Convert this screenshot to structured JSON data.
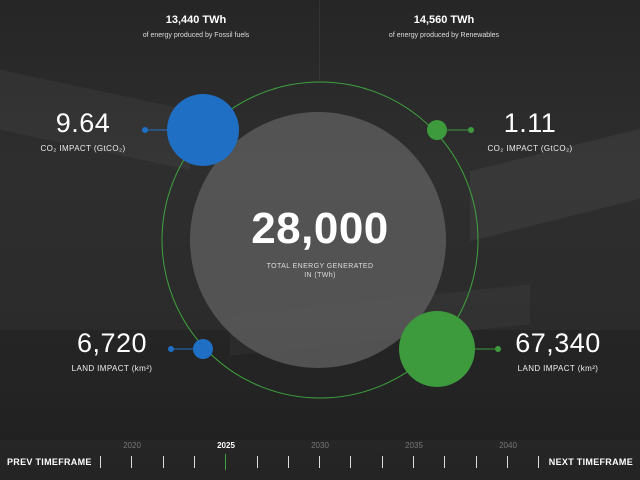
{
  "fossil": {
    "total": "13,440 TWh",
    "total_label": "of energy produced by Fossil fuels",
    "co2_value": "9.64",
    "co2_label": "CO₂ IMPACT (GtCO₂)",
    "land_value": "6,720",
    "land_label": "LAND IMPACT (km²)"
  },
  "renewables": {
    "total": "14,560 TWh",
    "total_label": "of energy produced by Renewables",
    "co2_value": "1.11",
    "co2_label": "CO₂ IMPACT (GtCO₂)",
    "land_value": "67,340",
    "land_label": "LAND IMPACT (km²)"
  },
  "center": {
    "total": "28,000",
    "label_line1": "TOTAL ENERGY GENERATED",
    "label_line2": "IN (TWh)"
  },
  "timeline": {
    "prev_label": "PREV TIMEFRAME",
    "next_label": "NEXT TIMEFRAME",
    "years": [
      "2020",
      "2025",
      "2030",
      "2035",
      "2040"
    ],
    "active_year": "2025"
  },
  "colors": {
    "fossil": "#1f6fc4",
    "renewables": "#3d9a3d",
    "orbit": "#3fa33f",
    "center_disc": "#5a5a5a"
  }
}
